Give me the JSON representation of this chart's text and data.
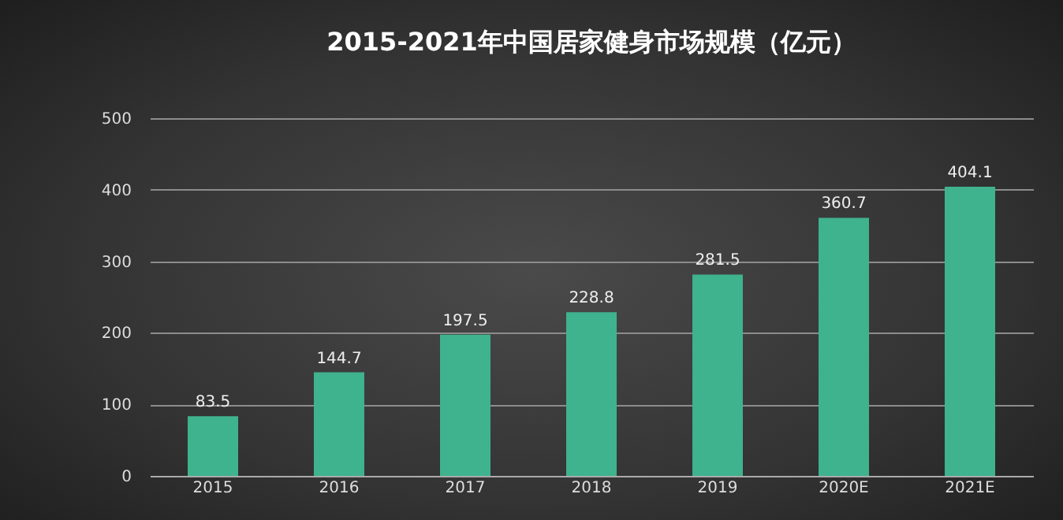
{
  "chart_data": {
    "type": "bar",
    "title": "2015-2021年中国居家健身市场规模（亿元）",
    "categories": [
      "2015",
      "2016",
      "2017",
      "2018",
      "2019",
      "2020E",
      "2021E"
    ],
    "values": [
      83.5,
      144.7,
      197.5,
      228.8,
      281.5,
      360.7,
      404.1
    ],
    "color": "#3fb28e",
    "ylim": [
      0,
      500
    ],
    "yticks": [
      0,
      100,
      200,
      300,
      400,
      500
    ],
    "grid": "y",
    "data_labels": true
  }
}
